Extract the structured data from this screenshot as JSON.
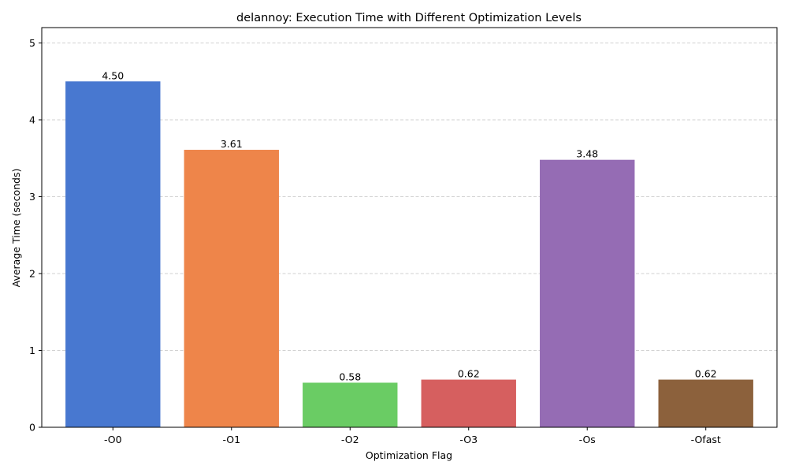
{
  "chart_data": {
    "type": "bar",
    "title": "delannoy: Execution Time with Different Optimization Levels",
    "xlabel": "Optimization Flag",
    "ylabel": "Average Time (seconds)",
    "categories": [
      "-O0",
      "-O1",
      "-O2",
      "-O3",
      "-Os",
      "-Ofast"
    ],
    "values": [
      4.5,
      3.61,
      0.58,
      0.62,
      3.48,
      0.62
    ],
    "value_labels": [
      "4.50",
      "3.61",
      "0.58",
      "0.62",
      "3.48",
      "0.62"
    ],
    "colors": [
      "#4878d0",
      "#ee854a",
      "#6acc64",
      "#d65f5f",
      "#956cb4",
      "#8c613c"
    ],
    "ylim": [
      0,
      5.2
    ],
    "yticks": [
      0,
      1,
      2,
      3,
      4,
      5
    ],
    "ytick_labels": [
      "0",
      "1",
      "2",
      "3",
      "4",
      "5"
    ],
    "grid": {
      "axis": "y",
      "style": "dashed",
      "enabled": true
    }
  }
}
